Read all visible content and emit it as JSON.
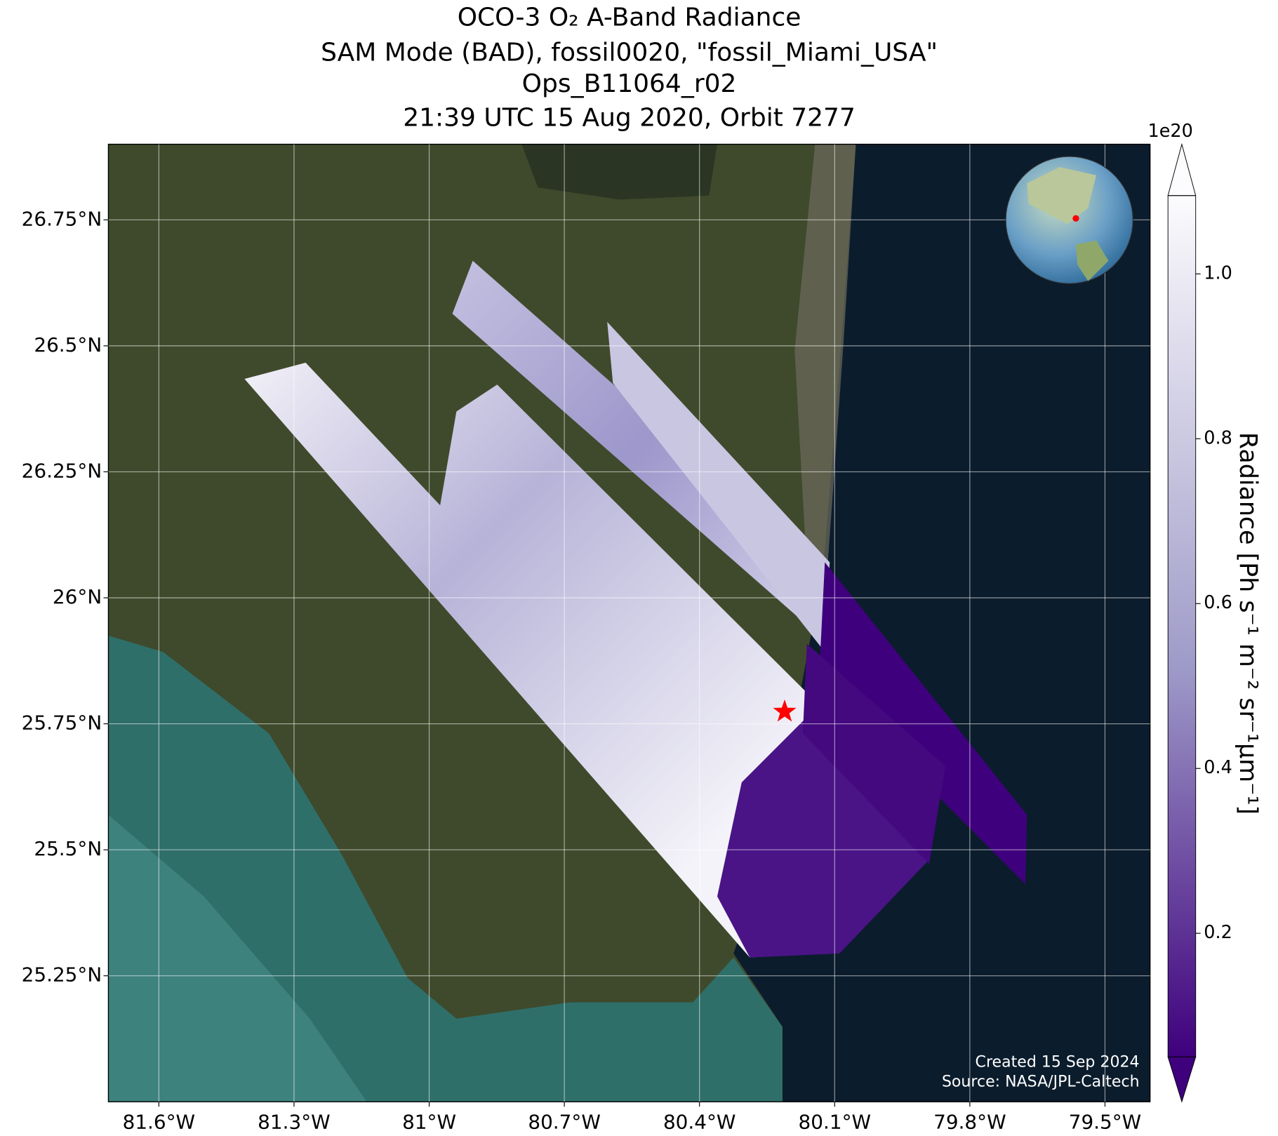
{
  "chart_data": {
    "type": "map",
    "title": [
      "OCO-3 O₂ A-Band Radiance",
      "SAM Mode (BAD), fossil0020, \"fossil_Miami_USA\"",
      "Ops_B11064_r02",
      "21:39 UTC 15 Aug 2020, Orbit 7277"
    ],
    "xlim": [
      -81.712,
      -79.4
    ],
    "ylim": [
      25.0,
      26.9
    ],
    "xticks": [
      {
        "value": -81.6,
        "label": "81.6°W"
      },
      {
        "value": -81.3,
        "label": "81.3°W"
      },
      {
        "value": -81.0,
        "label": "81°W"
      },
      {
        "value": -80.7,
        "label": "80.7°W"
      },
      {
        "value": -80.4,
        "label": "80.4°W"
      },
      {
        "value": -80.1,
        "label": "80.1°W"
      },
      {
        "value": -79.8,
        "label": "79.8°W"
      },
      {
        "value": -79.5,
        "label": "79.5°W"
      }
    ],
    "yticks": [
      {
        "value": 25.25,
        "label": "25.25°N"
      },
      {
        "value": 25.5,
        "label": "25.5°N"
      },
      {
        "value": 25.75,
        "label": "25.75°N"
      },
      {
        "value": 26.0,
        "label": "26°N"
      },
      {
        "value": 26.25,
        "label": "26.25°N"
      },
      {
        "value": 26.5,
        "label": "26.5°N"
      },
      {
        "value": 26.75,
        "label": "26.75°N"
      }
    ],
    "grid": true,
    "target": {
      "lon": -80.211,
      "lat": 25.774,
      "color": "#ff0000"
    },
    "colorbar": {
      "label": "Radiance [Ph s⁻¹ m⁻² sr⁻¹μm⁻¹]",
      "offset_label": "1e20",
      "lim": [
        0.05,
        1.095
      ],
      "ticks": [
        0.2,
        0.4,
        0.6,
        0.8,
        {
          "value": 1.0,
          "label": "1.0"
        }
      ],
      "colors": [
        "#3f007d",
        "#fcfbfd"
      ]
    },
    "credits": [
      "Created 15 Sep 2024",
      "Source: NASA/JPL-Caltech"
    ]
  }
}
